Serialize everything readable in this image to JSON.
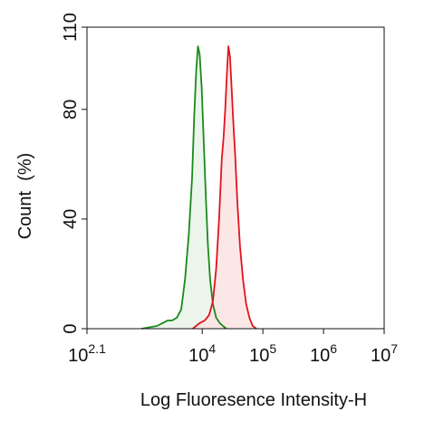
{
  "chart_data": {
    "type": "area",
    "xlabel": "Log Fluoresence Intensity-H",
    "ylabel": "Count  (%)",
    "x_scale": "log",
    "xlim": [
      125.9,
      10000000
    ],
    "ylim": [
      0,
      110
    ],
    "y_ticks": [
      "0",
      "40",
      "80",
      "110"
    ],
    "x_ticks": [
      {
        "base": "10",
        "exp": "2.1",
        "value": 125.9
      },
      {
        "base": "10",
        "exp": "4",
        "value": 10000
      },
      {
        "base": "10",
        "exp": "5",
        "value": 100000
      },
      {
        "base": "10",
        "exp": "6",
        "value": 1000000
      },
      {
        "base": "10",
        "exp": "7",
        "value": 10000000
      }
    ],
    "grid": false,
    "legend": "none",
    "series": [
      {
        "color": "#1a8a1a",
        "fill": "#e8f3e8",
        "x": [
          1000,
          1800,
          2200,
          2700,
          3200,
          3800,
          4500,
          5200,
          6000,
          6800,
          7400,
          8000,
          8500,
          9100,
          9800,
          10600,
          11500,
          12400,
          13500,
          15000,
          17000,
          19500,
          22000,
          25000
        ],
        "y": [
          0,
          1,
          2,
          3,
          3,
          4,
          7,
          18,
          34,
          55,
          78,
          95,
          103,
          100,
          88,
          68,
          48,
          31,
          18,
          9,
          4,
          2,
          1,
          0
        ]
      },
      {
        "color": "#e0141e",
        "fill": "#fbe3e3",
        "x": [
          7000,
          9000,
          11000,
          13000,
          15000,
          17000,
          19000,
          21000,
          22500,
          24000,
          25500,
          27000,
          28800,
          30500,
          32500,
          35000,
          38000,
          42000,
          47000,
          53000,
          60000,
          68000,
          78000
        ],
        "y": [
          0,
          2,
          3,
          5,
          10,
          22,
          40,
          62,
          70,
          80,
          93,
          103,
          99,
          88,
          76,
          63,
          46,
          30,
          18,
          9,
          4,
          1,
          0
        ]
      }
    ]
  }
}
